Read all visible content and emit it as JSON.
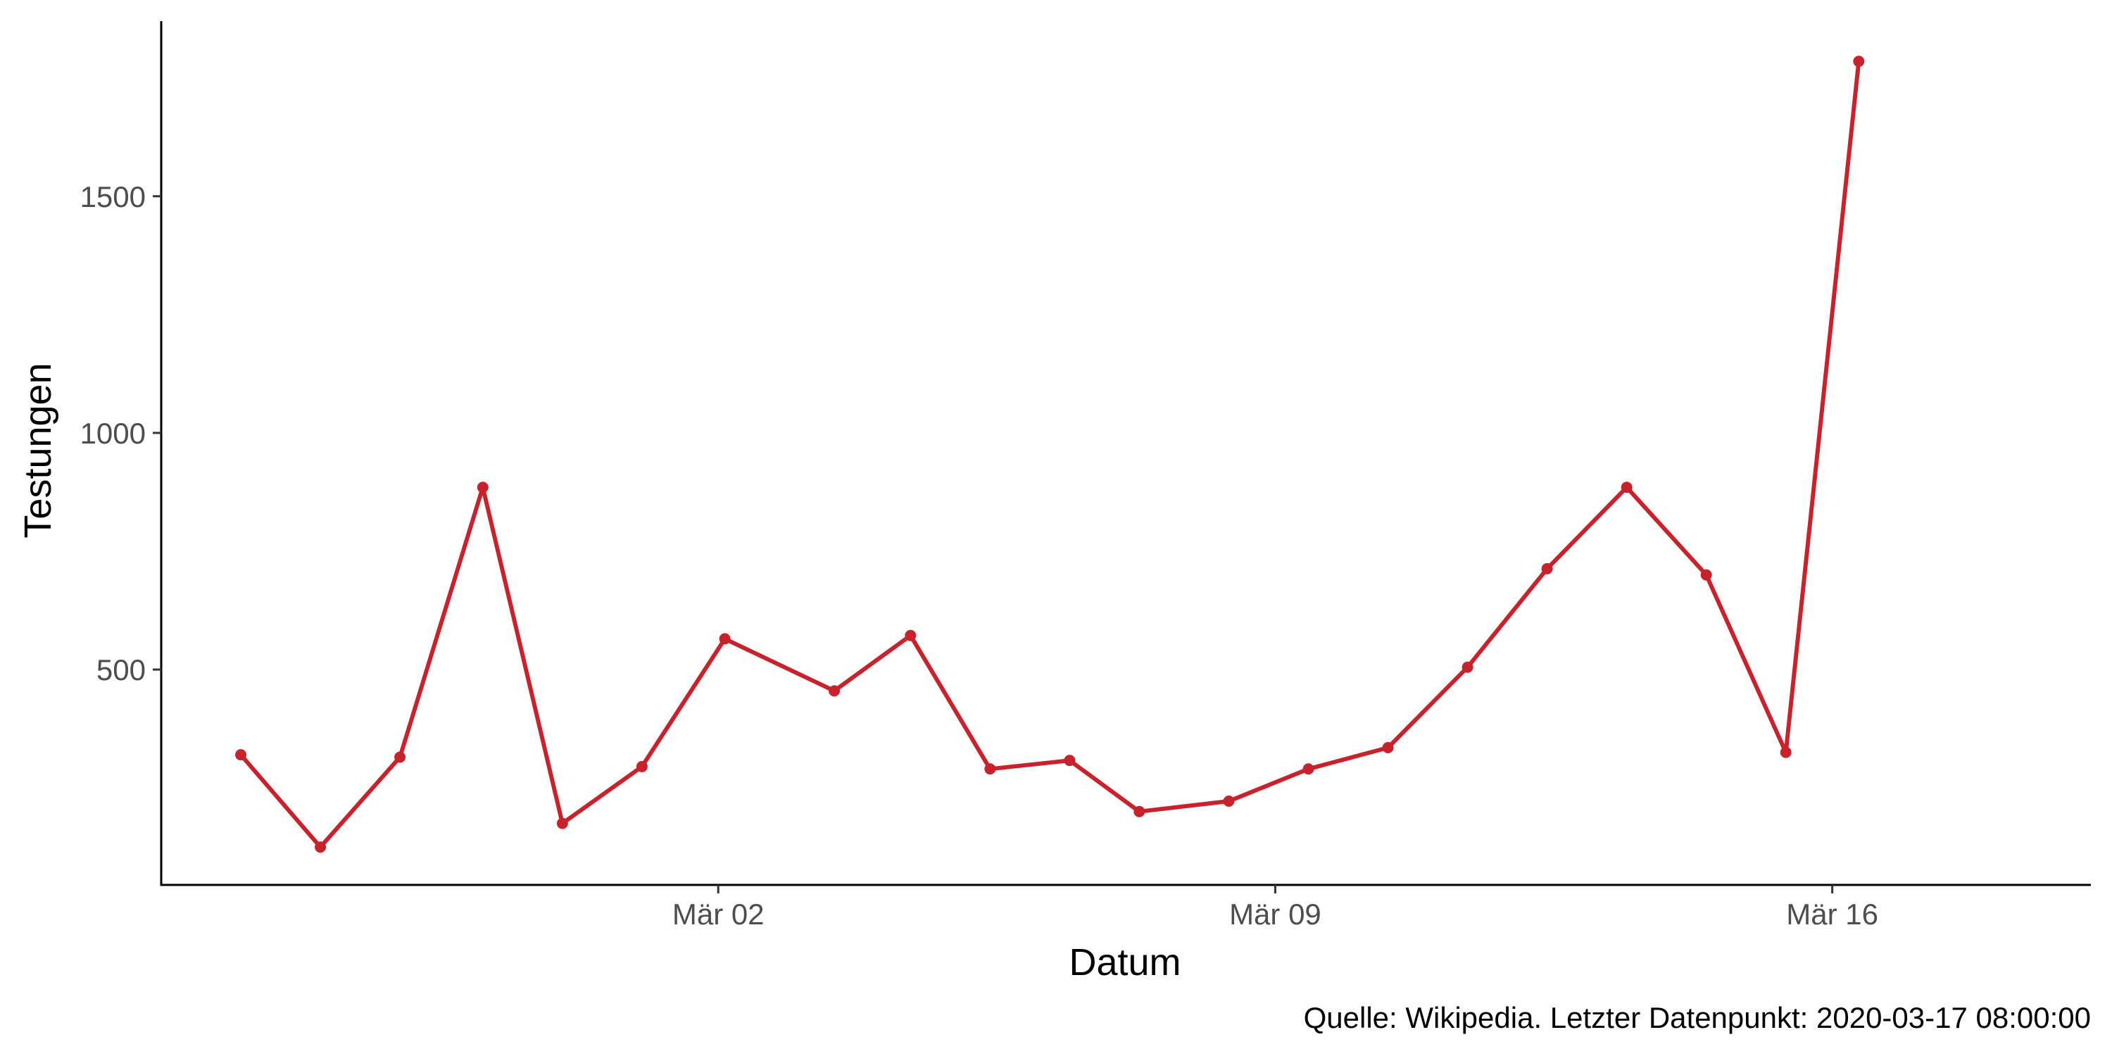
{
  "chart_data": {
    "type": "line",
    "title": "",
    "xlabel": "Datum",
    "ylabel": "Testungen",
    "caption": "Quelle: Wikipedia. Letzter Datenpunkt: 2020-03-17 08:00:00",
    "x_ticks": [
      {
        "label": "Mär 02",
        "date": "2020-03-02"
      },
      {
        "label": "Mär 09",
        "date": "2020-03-09"
      },
      {
        "label": "Mär 16",
        "date": "2020-03-16"
      }
    ],
    "y_ticks": [
      500,
      1000,
      1500
    ],
    "xlim": [
      "2020-02-24T00:00",
      "2020-03-19T06:00"
    ],
    "ylim": [
      45,
      1870
    ],
    "grid": false,
    "legend": "none",
    "series": [
      {
        "color": "#c8232c",
        "points": [
          {
            "x": "2020-02-25T00:00",
            "y": 320
          },
          {
            "x": "2020-02-26T00:00",
            "y": 125
          },
          {
            "x": "2020-02-27T00:00",
            "y": 315
          },
          {
            "x": "2020-02-28T01:00",
            "y": 885
          },
          {
            "x": "2020-02-29T01:00",
            "y": 175
          },
          {
            "x": "2020-03-01T01:00",
            "y": 295
          },
          {
            "x": "2020-03-02T02:00",
            "y": 565
          },
          {
            "x": "2020-03-03T11:00",
            "y": 455
          },
          {
            "x": "2020-03-04T10:00",
            "y": 572
          },
          {
            "x": "2020-03-05T10:00",
            "y": 290
          },
          {
            "x": "2020-03-06T10:00",
            "y": 308
          },
          {
            "x": "2020-03-07T07:00",
            "y": 200
          },
          {
            "x": "2020-03-08T10:00",
            "y": 222
          },
          {
            "x": "2020-03-09T10:00",
            "y": 290
          },
          {
            "x": "2020-03-10T10:00",
            "y": 335
          },
          {
            "x": "2020-03-11T10:00",
            "y": 505
          },
          {
            "x": "2020-03-12T10:00",
            "y": 713
          },
          {
            "x": "2020-03-13T10:00",
            "y": 885
          },
          {
            "x": "2020-03-14T10:00",
            "y": 700
          },
          {
            "x": "2020-03-15T10:00",
            "y": 325
          },
          {
            "x": "2020-03-16T08:00",
            "y": 1785
          }
        ]
      }
    ]
  }
}
